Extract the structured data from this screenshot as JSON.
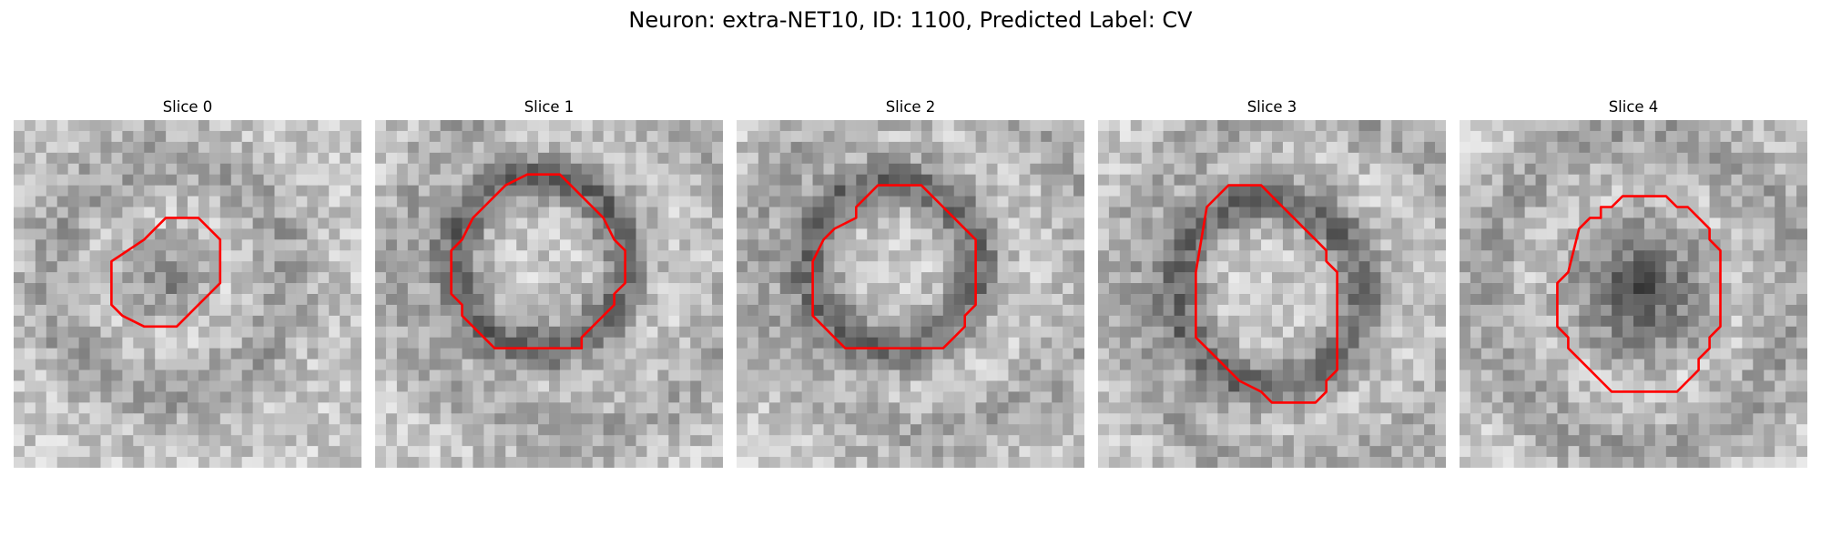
{
  "figure": {
    "title": "Neuron: extra-NET10, ID: 1100, Predicted Label: CV"
  },
  "panels": [
    {
      "label": "Slice 0"
    },
    {
      "label": "Slice 1"
    },
    {
      "label": "Slice 2"
    },
    {
      "label": "Slice 3"
    },
    {
      "label": "Slice 4"
    }
  ],
  "colors": {
    "contour": "#ff0000",
    "background": "#ffffff"
  }
}
